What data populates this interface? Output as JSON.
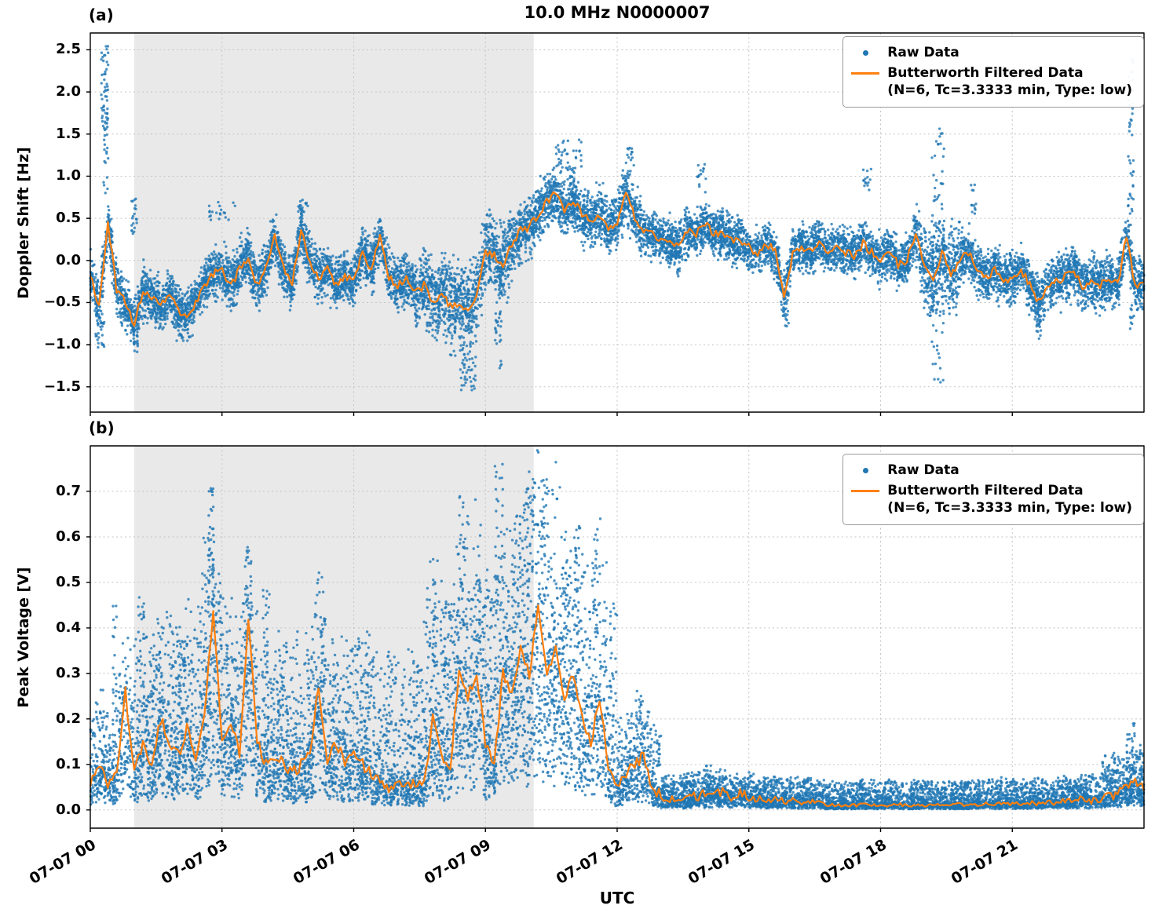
{
  "figure": {
    "title": "10.0 MHz N0000007",
    "xlabel": "UTC",
    "background": "#ffffff"
  },
  "colors": {
    "raw": "#1f77b4",
    "filtered": "#ff7f0e",
    "shaded_region": "#e9e9e9",
    "grid": "#c4c4c4",
    "spine": "#000000"
  },
  "legend": {
    "raw_label": "Raw Data",
    "filtered_label": "Butterworth Filtered Data",
    "filtered_sublabel": "(N=6, Tc=3.3333 min, Type: low)"
  },
  "x_axis": {
    "lim_hours": [
      0,
      24
    ],
    "tick_hours": [
      0,
      3,
      6,
      9,
      12,
      15,
      18,
      21
    ],
    "tick_labels": [
      "07-07 00",
      "07-07 03",
      "07-07 06",
      "07-07 09",
      "07-07 12",
      "07-07 15",
      "07-07 18",
      "07-07 21"
    ]
  },
  "shaded_region_hours": [
    1.0,
    10.1
  ],
  "chart_data": [
    {
      "id": "doppler",
      "type": "scatter",
      "panel_label": "(a)",
      "title": "10.0 MHz N0000007",
      "xlabel": "UTC",
      "ylabel": "Doppler Shift [Hz]",
      "xlim": [
        0,
        24
      ],
      "ylim": [
        -1.8,
        2.7
      ],
      "yticks": [
        2.5,
        2.0,
        1.5,
        1.0,
        0.5,
        0.0,
        -0.5,
        -1.0,
        -1.5
      ],
      "ytick_labels": [
        "2.5",
        "2.0",
        "1.5",
        "1.0",
        "0.5",
        "0.0",
        "−0.5",
        "−1.0",
        "−1.5"
      ],
      "grid": true,
      "legend_position": "upper right",
      "series": [
        {
          "name": "Raw Data",
          "kind": "scatter"
        },
        {
          "name": "Butterworth Filtered Data (N=6, Tc=3.3333 min, Type: low)",
          "kind": "line"
        }
      ],
      "filtered_line": {
        "x_start": 0,
        "x_step": 0.2,
        "y": [
          -0.15,
          -0.55,
          0.45,
          -0.35,
          -0.5,
          -0.75,
          -0.35,
          -0.45,
          -0.55,
          -0.4,
          -0.6,
          -0.65,
          -0.5,
          -0.3,
          -0.15,
          -0.1,
          -0.3,
          -0.1,
          0.05,
          -0.3,
          -0.1,
          0.3,
          -0.1,
          -0.25,
          0.35,
          0.0,
          -0.2,
          -0.1,
          -0.3,
          -0.2,
          -0.25,
          0.1,
          -0.1,
          0.3,
          -0.2,
          -0.3,
          -0.2,
          -0.4,
          -0.3,
          -0.5,
          -0.4,
          -0.55,
          -0.5,
          -0.6,
          -0.4,
          0.1,
          0.05,
          -0.1,
          0.2,
          0.35,
          0.4,
          0.55,
          0.7,
          0.8,
          0.6,
          0.7,
          0.55,
          0.45,
          0.55,
          0.4,
          0.45,
          0.8,
          0.5,
          0.35,
          0.3,
          0.25,
          0.2,
          0.15,
          0.35,
          0.3,
          0.45,
          0.3,
          0.35,
          0.25,
          0.2,
          0.15,
          0.1,
          0.2,
          0.1,
          -0.45,
          0.1,
          0.15,
          0.1,
          0.2,
          0.1,
          0.15,
          0.1,
          0.05,
          0.2,
          0.1,
          0.0,
          0.1,
          -0.05,
          0.0,
          0.3,
          -0.1,
          -0.25,
          0.1,
          -0.2,
          0.0,
          0.1,
          -0.1,
          -0.2,
          -0.1,
          -0.25,
          -0.2,
          -0.1,
          -0.3,
          -0.5,
          -0.3,
          -0.25,
          -0.2,
          -0.1,
          -0.3,
          -0.25,
          -0.3,
          -0.2,
          -0.3,
          0.3,
          -0.3,
          -0.25
        ]
      },
      "render": {
        "seed": 1234,
        "base_points": 12000,
        "noise": "gauss",
        "line_wiggle": 0.05,
        "wiggle_scale": false,
        "spread_segments": [
          {
            "x0": 0.0,
            "x1": 7.4,
            "s": 0.3
          },
          {
            "x0": 7.4,
            "x1": 9.6,
            "s": 0.45
          },
          {
            "x0": 9.6,
            "x1": 12.6,
            "s": 0.33
          },
          {
            "x0": 12.6,
            "x1": 18.8,
            "s": 0.27
          },
          {
            "x0": 18.8,
            "x1": 19.8,
            "s": 0.5
          },
          {
            "x0": 19.8,
            "x1": 24.0,
            "s": 0.3
          }
        ],
        "clusters": [
          {
            "x": 0.33,
            "w": 0.08,
            "ymin": 0.8,
            "ymax": 2.55,
            "n": 70
          },
          {
            "x": 0.22,
            "w": 0.1,
            "ymin": -1.05,
            "ymax": -0.6,
            "n": 30
          },
          {
            "x": 1.0,
            "w": 0.06,
            "ymin": 0.3,
            "ymax": 0.75,
            "n": 20
          },
          {
            "x": 1.05,
            "w": 0.06,
            "ymin": -1.1,
            "ymax": -0.75,
            "n": 15
          },
          {
            "x": 3.0,
            "w": 0.3,
            "ymin": 0.45,
            "ymax": 0.7,
            "n": 20
          },
          {
            "x": 4.85,
            "w": 0.15,
            "ymin": 0.5,
            "ymax": 0.72,
            "n": 15
          },
          {
            "x": 8.6,
            "w": 0.18,
            "ymin": -1.55,
            "ymax": -1.0,
            "n": 45
          },
          {
            "x": 9.3,
            "w": 0.08,
            "ymin": -1.3,
            "ymax": -0.55,
            "n": 25
          },
          {
            "x": 10.9,
            "w": 0.3,
            "ymin": 1.05,
            "ymax": 1.45,
            "n": 40
          },
          {
            "x": 12.3,
            "w": 0.1,
            "ymin": 0.95,
            "ymax": 1.45,
            "n": 18
          },
          {
            "x": 13.9,
            "w": 0.12,
            "ymin": 0.8,
            "ymax": 1.15,
            "n": 15
          },
          {
            "x": 15.85,
            "w": 0.06,
            "ymin": -0.8,
            "ymax": -0.3,
            "n": 20
          },
          {
            "x": 17.7,
            "w": 0.1,
            "ymin": 0.7,
            "ymax": 1.1,
            "n": 14
          },
          {
            "x": 19.3,
            "w": 0.15,
            "ymin": -1.5,
            "ymax": 1.6,
            "n": 90
          },
          {
            "x": 20.1,
            "w": 0.08,
            "ymin": 0.5,
            "ymax": 0.9,
            "n": 12
          },
          {
            "x": 21.6,
            "w": 0.06,
            "ymin": -0.95,
            "ymax": -0.6,
            "n": 10
          },
          {
            "x": 23.7,
            "w": 0.07,
            "ymin": 0.4,
            "ymax": 2.45,
            "n": 45
          },
          {
            "x": 23.72,
            "w": 0.05,
            "ymin": -0.85,
            "ymax": -0.4,
            "n": 10
          }
        ]
      }
    },
    {
      "id": "voltage",
      "type": "scatter",
      "panel_label": "(b)",
      "xlabel": "UTC",
      "ylabel": "Peak Voltage [V]",
      "xlim": [
        0,
        24
      ],
      "ylim": [
        -0.04,
        0.8
      ],
      "yticks": [
        0.7,
        0.6,
        0.5,
        0.4,
        0.3,
        0.2,
        0.1,
        0.0
      ],
      "ytick_labels": [
        "0.7",
        "0.6",
        "0.5",
        "0.4",
        "0.3",
        "0.2",
        "0.1",
        "0.0"
      ],
      "grid": true,
      "legend_position": "upper right",
      "series": [
        {
          "name": "Raw Data",
          "kind": "scatter"
        },
        {
          "name": "Butterworth Filtered Data (N=6, Tc=3.3333 min, Type: low)",
          "kind": "line"
        }
      ],
      "filtered_line": {
        "x_start": 0,
        "x_step": 0.2,
        "y": [
          0.05,
          0.1,
          0.06,
          0.08,
          0.26,
          0.08,
          0.15,
          0.1,
          0.2,
          0.15,
          0.12,
          0.18,
          0.12,
          0.2,
          0.45,
          0.15,
          0.2,
          0.12,
          0.42,
          0.15,
          0.1,
          0.12,
          0.1,
          0.08,
          0.1,
          0.12,
          0.28,
          0.1,
          0.15,
          0.1,
          0.12,
          0.1,
          0.08,
          0.06,
          0.05,
          0.06,
          0.05,
          0.06,
          0.05,
          0.2,
          0.12,
          0.1,
          0.3,
          0.25,
          0.3,
          0.15,
          0.1,
          0.3,
          0.25,
          0.35,
          0.3,
          0.44,
          0.3,
          0.35,
          0.25,
          0.3,
          0.2,
          0.15,
          0.25,
          0.1,
          0.05,
          0.08,
          0.1,
          0.12,
          0.05,
          0.03,
          0.025,
          0.02,
          0.025,
          0.03,
          0.035,
          0.03,
          0.04,
          0.03,
          0.035,
          0.03,
          0.025,
          0.02,
          0.025,
          0.02,
          0.02,
          0.015,
          0.02,
          0.015,
          0.01,
          0.012,
          0.01,
          0.01,
          0.012,
          0.01,
          0.01,
          0.01,
          0.012,
          0.01,
          0.01,
          0.01,
          0.012,
          0.01,
          0.01,
          0.012,
          0.01,
          0.012,
          0.015,
          0.012,
          0.015,
          0.015,
          0.012,
          0.015,
          0.015,
          0.02,
          0.015,
          0.02,
          0.02,
          0.025,
          0.02,
          0.025,
          0.03,
          0.035,
          0.05,
          0.06,
          0.05
        ]
      },
      "render": {
        "seed": 97531,
        "base_points": 12000,
        "noise": "skew",
        "line_wiggle": 0.013,
        "wiggle_scale": true,
        "spread_segments": [
          {
            "x0": 0.0,
            "x1": 1.0,
            "s": 0.1
          },
          {
            "x0": 1.0,
            "x1": 7.6,
            "s": 0.16
          },
          {
            "x0": 7.6,
            "x1": 12.0,
            "s": 0.22
          },
          {
            "x0": 12.0,
            "x1": 13.0,
            "s": 0.08
          },
          {
            "x0": 13.0,
            "x1": 23.0,
            "s": 0.03
          },
          {
            "x0": 23.0,
            "x1": 24.0,
            "s": 0.05
          }
        ],
        "clusters": [
          {
            "x": 0.55,
            "w": 0.05,
            "ymin": 0.25,
            "ymax": 0.45,
            "n": 15
          },
          {
            "x": 1.15,
            "w": 0.08,
            "ymin": 0.3,
            "ymax": 0.48,
            "n": 20
          },
          {
            "x": 1.5,
            "w": 0.1,
            "ymin": 0.25,
            "ymax": 0.37,
            "n": 15
          },
          {
            "x": 2.0,
            "w": 0.15,
            "ymin": 0.25,
            "ymax": 0.38,
            "n": 20
          },
          {
            "x": 2.6,
            "w": 0.1,
            "ymin": 0.3,
            "ymax": 0.6,
            "n": 25
          },
          {
            "x": 2.75,
            "w": 0.06,
            "ymin": 0.4,
            "ymax": 0.73,
            "n": 30
          },
          {
            "x": 3.0,
            "w": 0.08,
            "ymin": 0.3,
            "ymax": 0.5,
            "n": 15
          },
          {
            "x": 3.6,
            "w": 0.08,
            "ymin": 0.3,
            "ymax": 0.57,
            "n": 25
          },
          {
            "x": 4.0,
            "w": 0.08,
            "ymin": 0.25,
            "ymax": 0.49,
            "n": 20
          },
          {
            "x": 4.4,
            "w": 0.1,
            "ymin": 0.2,
            "ymax": 0.35,
            "n": 15
          },
          {
            "x": 5.3,
            "w": 0.06,
            "ymin": 0.25,
            "ymax": 0.43,
            "n": 20
          },
          {
            "x": 5.6,
            "w": 0.08,
            "ymin": 0.2,
            "ymax": 0.33,
            "n": 12
          },
          {
            "x": 7.85,
            "w": 0.06,
            "ymin": 0.3,
            "ymax": 0.51,
            "n": 20
          },
          {
            "x": 8.1,
            "w": 0.06,
            "ymin": 0.25,
            "ymax": 0.47,
            "n": 15
          },
          {
            "x": 8.45,
            "w": 0.08,
            "ymin": 0.4,
            "ymax": 0.7,
            "n": 30
          },
          {
            "x": 8.8,
            "w": 0.1,
            "ymin": 0.3,
            "ymax": 0.5,
            "n": 20
          },
          {
            "x": 9.3,
            "w": 0.1,
            "ymin": 0.45,
            "ymax": 0.76,
            "n": 35
          },
          {
            "x": 9.7,
            "w": 0.1,
            "ymin": 0.4,
            "ymax": 0.65,
            "n": 25
          },
          {
            "x": 10.0,
            "w": 0.12,
            "ymin": 0.5,
            "ymax": 0.76,
            "n": 40
          },
          {
            "x": 10.35,
            "w": 0.08,
            "ymin": 0.45,
            "ymax": 0.74,
            "n": 30
          },
          {
            "x": 10.8,
            "w": 0.08,
            "ymin": 0.35,
            "ymax": 0.58,
            "n": 20
          },
          {
            "x": 11.1,
            "w": 0.08,
            "ymin": 0.4,
            "ymax": 0.63,
            "n": 25
          },
          {
            "x": 11.5,
            "w": 0.06,
            "ymin": 0.35,
            "ymax": 0.62,
            "n": 20
          },
          {
            "x": 12.5,
            "w": 0.1,
            "ymin": 0.15,
            "ymax": 0.28,
            "n": 15
          },
          {
            "x": 14.0,
            "w": 0.15,
            "ymin": 0.06,
            "ymax": 0.11,
            "n": 10
          },
          {
            "x": 23.7,
            "w": 0.1,
            "ymin": 0.08,
            "ymax": 0.19,
            "n": 25
          }
        ]
      }
    }
  ]
}
